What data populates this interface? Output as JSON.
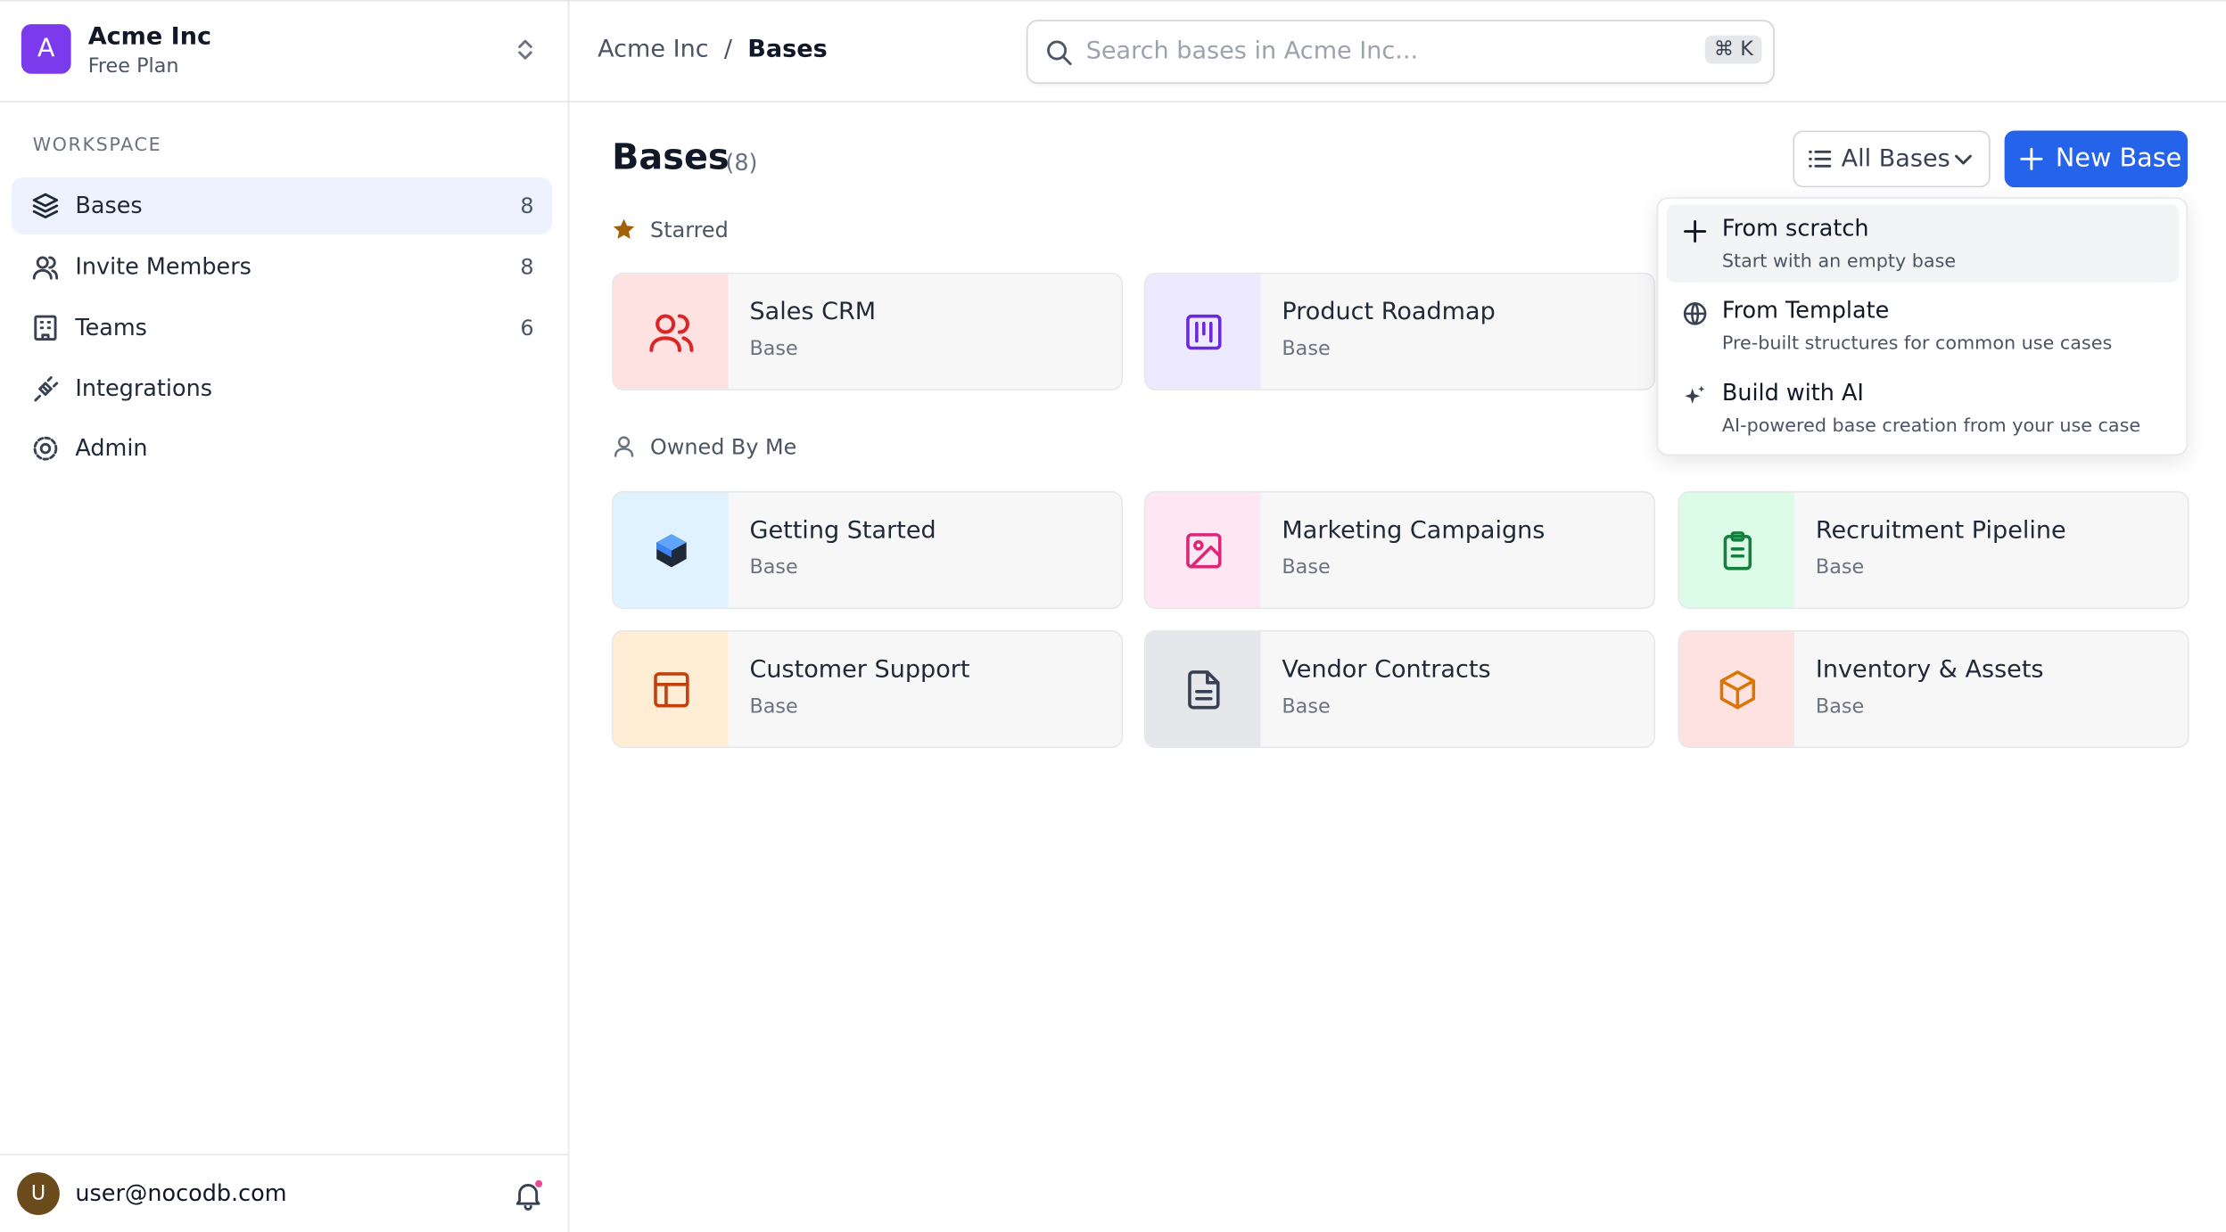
{
  "workspace": {
    "initial": "A",
    "name": "Acme Inc",
    "plan": "Free Plan"
  },
  "sidebar": {
    "section": "WORKSPACE",
    "items": [
      {
        "label": "Bases",
        "count": 8
      },
      {
        "label": "Invite Members",
        "count": 8
      },
      {
        "label": "Teams",
        "count": 6
      },
      {
        "label": "Integrations"
      },
      {
        "label": "Admin"
      }
    ]
  },
  "user": {
    "initial": "U",
    "email": "user@nocodb.com"
  },
  "breadcrumb": [
    "Acme Inc",
    "Bases"
  ],
  "search": {
    "placeholder": "Search bases in Acme Inc...",
    "shortcut": "⌘ K"
  },
  "main": {
    "title": "Bases",
    "count": "(8)",
    "filter": "All Bases",
    "new_button": "New Base"
  },
  "menu": [
    {
      "title": "From scratch",
      "description": "Start with an empty base"
    },
    {
      "title": "From Template",
      "description": "Pre-built structures for common use cases"
    },
    {
      "title": "Build with AI",
      "description": "AI-powered base creation from your use case"
    }
  ],
  "sections": [
    {
      "heading": "Starred",
      "cards": [
        {
          "title": "Sales CRM",
          "subtitle": "Base"
        },
        {
          "title": "Product Roadmap",
          "subtitle": "Base"
        }
      ]
    },
    {
      "heading": "Owned By Me",
      "cards": [
        {
          "title": "Getting Started",
          "subtitle": "Base"
        },
        {
          "title": "Marketing Campaigns",
          "subtitle": "Base"
        },
        {
          "title": "Recruitment Pipeline",
          "subtitle": "Base"
        },
        {
          "title": "Customer Support",
          "subtitle": "Base"
        },
        {
          "title": "Vendor Contracts",
          "subtitle": "Base"
        },
        {
          "title": "Inventory & Assets",
          "subtitle": "Base"
        }
      ]
    }
  ]
}
